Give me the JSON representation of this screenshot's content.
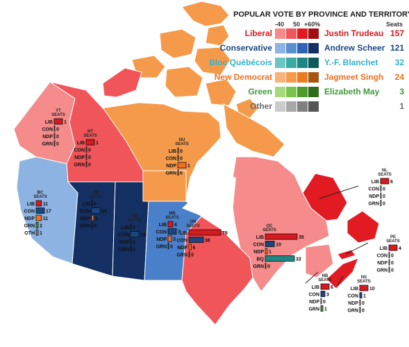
{
  "legend": {
    "title": "POPULAR VOTE BY PROVINCE AND TERRITORY",
    "scale_labels": [
      "-40",
      "50",
      "+60%"
    ],
    "seats_header": "Seats",
    "parties": [
      {
        "party": "Liberal",
        "leader": "Justin Trudeau",
        "seats": "157",
        "color": "#d71920",
        "swatches": [
          "#f58b8b",
          "#f0555a",
          "#e21b23",
          "#a30d12"
        ]
      },
      {
        "party": "Conservative",
        "leader": "Andrew Scheer",
        "seats": "121",
        "color": "#1a4782",
        "swatches": [
          "#8db3e2",
          "#5a8fd4",
          "#2f63b3",
          "#142f61"
        ]
      },
      {
        "party": "Bloc Québécois",
        "leader": "Y.-F. Blanchet",
        "seats": "32",
        "color": "#33b2cc",
        "swatches": [
          "#6cc5c0",
          "#3aa9a3",
          "#1d8784",
          "#0c5a58"
        ]
      },
      {
        "party": "New Democrat",
        "leader": "Jagmeet Singh",
        "seats": "24",
        "color": "#f37021",
        "swatches": [
          "#f9b27a",
          "#f59a4a",
          "#e97c1f",
          "#a55611"
        ]
      },
      {
        "party": "Green",
        "leader": "Elizabeth May",
        "seats": "3",
        "color": "#3d9b35",
        "swatches": [
          "#a7d97a",
          "#79c44a",
          "#4e9b2c",
          "#2f6b1a"
        ]
      },
      {
        "party": "Other",
        "leader": "",
        "seats": "1",
        "color": "#6b6b6b",
        "swatches": [
          "#cccccc",
          "#a8a8a8",
          "#808080",
          "#555555"
        ]
      }
    ]
  },
  "regions": [
    {
      "id": "yt",
      "name": "YT",
      "fill": "#f58b8b",
      "rows": [
        [
          "LIB",
          "1"
        ],
        [
          "CON",
          "0"
        ],
        [
          "NDP",
          "0"
        ],
        [
          "GRN",
          "0"
        ]
      ]
    },
    {
      "id": "nt",
      "name": "NT",
      "fill": "#f0555a",
      "rows": [
        [
          "LIB",
          "1"
        ],
        [
          "CON",
          "0"
        ],
        [
          "NDP",
          "0"
        ],
        [
          "GRN",
          "0"
        ]
      ]
    },
    {
      "id": "nu",
      "name": "NU",
      "fill": "#f59a4a",
      "rows": [
        [
          "LIB",
          "0"
        ],
        [
          "CON",
          "0"
        ],
        [
          "NDP",
          "1"
        ],
        [
          "GRN",
          "0"
        ]
      ]
    },
    {
      "id": "bc",
      "name": "BC",
      "fill": "#8db3e2",
      "rows": [
        [
          "LIB",
          "11"
        ],
        [
          "CON",
          "17"
        ],
        [
          "NDP",
          "11"
        ],
        [
          "GRN",
          "2"
        ],
        [
          "OTH",
          "1"
        ]
      ]
    },
    {
      "id": "ab",
      "name": "AB",
      "fill": "#142f61",
      "rows": [
        [
          "LIB",
          "0"
        ],
        [
          "CON",
          "33"
        ],
        [
          "NDP",
          "1"
        ],
        [
          "GRN",
          "0"
        ]
      ]
    },
    {
      "id": "sk",
      "name": "SK",
      "fill": "#142f61",
      "rows": [
        [
          "LIB",
          "0"
        ],
        [
          "CON",
          "14"
        ],
        [
          "NDP",
          "0"
        ],
        [
          "GRN",
          "0"
        ]
      ]
    },
    {
      "id": "mb",
      "name": "MB",
      "fill": "#4a7fca",
      "rows": [
        [
          "LIB",
          "4"
        ],
        [
          "CON",
          "7"
        ],
        [
          "NDP",
          "3"
        ],
        [
          "GRN",
          "0"
        ]
      ]
    },
    {
      "id": "on",
      "name": "ON",
      "fill": "#f0555a",
      "rows": [
        [
          "LIB",
          "79"
        ],
        [
          "CON",
          "36"
        ],
        [
          "NDP",
          "6"
        ],
        [
          "GRN",
          "0"
        ]
      ]
    },
    {
      "id": "qc",
      "name": "QC",
      "fill": "#f58b8b",
      "rows": [
        [
          "LIB",
          "35"
        ],
        [
          "CON",
          "10"
        ],
        [
          "NDP",
          "1"
        ],
        [
          "BQ",
          "32"
        ],
        [
          "GRN",
          "0"
        ]
      ]
    },
    {
      "id": "nl",
      "name": "NL",
      "fill": "#e21b23",
      "rows": [
        [
          "LIB",
          "6"
        ],
        [
          "CON",
          "0"
        ],
        [
          "NDP",
          "0"
        ],
        [
          "GRN",
          "0"
        ]
      ]
    },
    {
      "id": "pe",
      "name": "PE",
      "fill": "#e21b23",
      "rows": [
        [
          "LIB",
          "4"
        ],
        [
          "CON",
          "0"
        ],
        [
          "NDP",
          "0"
        ],
        [
          "GRN",
          "0"
        ]
      ]
    },
    {
      "id": "nb",
      "name": "NB",
      "fill": "#f58b8b",
      "rows": [
        [
          "LIB",
          "6"
        ],
        [
          "CON",
          "3"
        ],
        [
          "NDP",
          "0"
        ],
        [
          "GRN",
          "1"
        ]
      ]
    },
    {
      "id": "ns",
      "name": "NS",
      "fill": "#e21b23",
      "rows": [
        [
          "LIB",
          "10"
        ],
        [
          "CON",
          "1"
        ],
        [
          "NDP",
          "0"
        ],
        [
          "GRN",
          "0"
        ]
      ]
    }
  ],
  "seats_label": "SEATS",
  "party_colors": {
    "LIB": "#d71920",
    "CON": "#1a4782",
    "NDP": "#f37021",
    "BQ": "#1d8784",
    "GRN": "#3d9b35",
    "OTH": "#888888"
  }
}
